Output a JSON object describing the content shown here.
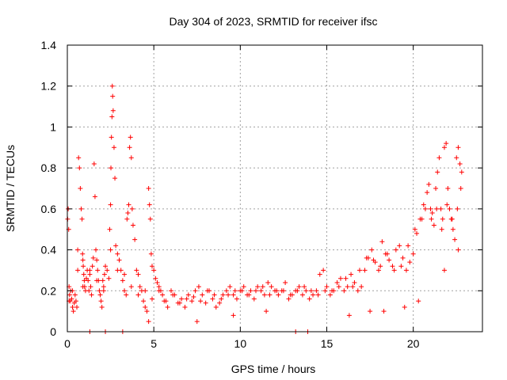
{
  "chart_data": {
    "type": "scatter",
    "title": "Day 304 of 2023, SRMTID for receiver ifsc",
    "xlabel": "GPS time / hours",
    "ylabel": "SRMTID / TECUs",
    "xlim": [
      0,
      24
    ],
    "ylim": [
      0,
      1.4
    ],
    "xticks": [
      0,
      5,
      10,
      15,
      20
    ],
    "xtick_labels": [
      "0",
      "5",
      "10",
      "15",
      "20"
    ],
    "yticks": [
      0,
      0.2,
      0.4,
      0.6,
      0.8,
      1.0,
      1.2,
      1.4
    ],
    "ytick_labels": [
      "0",
      "0.2",
      "0.4",
      "0.6",
      "0.8",
      "1",
      "1.2",
      "1.4"
    ],
    "grid": true,
    "marker": "plus",
    "color": "#ff0000",
    "series": [
      {
        "name": "SRMTID",
        "x": [
          0.02,
          0.05,
          0.08,
          0.1,
          0.13,
          0.17,
          0.2,
          0.25,
          0.3,
          0.35,
          0.4,
          0.45,
          0.5,
          0.55,
          0.6,
          0.65,
          0.7,
          0.75,
          0.8,
          0.85,
          0.88,
          0.9,
          0.92,
          0.95,
          0.98,
          1.0,
          1.05,
          1.1,
          1.15,
          1.2,
          1.25,
          1.3,
          1.35,
          1.4,
          1.45,
          1.5,
          1.55,
          1.6,
          1.65,
          1.7,
          1.75,
          1.8,
          1.85,
          1.9,
          1.95,
          2.0,
          2.05,
          2.1,
          2.15,
          2.2,
          2.3,
          2.4,
          2.45,
          2.5,
          2.52,
          2.55,
          2.58,
          2.6,
          2.62,
          2.65,
          2.7,
          2.75,
          2.8,
          2.9,
          3.0,
          3.1,
          3.2,
          3.3,
          3.4,
          3.45,
          3.5,
          3.55,
          3.6,
          3.65,
          3.7,
          3.75,
          3.8,
          3.9,
          4.0,
          4.1,
          4.2,
          4.3,
          4.4,
          4.5,
          4.6,
          4.7,
          4.75,
          4.8,
          4.85,
          4.9,
          5.0,
          5.1,
          5.2,
          5.3,
          5.4,
          5.5,
          5.6,
          5.8,
          6.0,
          6.2,
          6.4,
          6.6,
          6.8,
          7.0,
          7.2,
          7.4,
          7.6,
          7.8,
          8.0,
          8.2,
          8.4,
          8.6,
          8.8,
          9.0,
          9.2,
          9.4,
          9.6,
          9.8,
          10.0,
          10.2,
          10.4,
          10.6,
          10.8,
          11.0,
          11.2,
          11.4,
          11.6,
          11.8,
          12.0,
          12.2,
          12.4,
          12.6,
          12.8,
          13.0,
          13.2,
          13.4,
          13.6,
          13.8,
          14.0,
          14.2,
          14.4,
          14.6,
          14.8,
          15.0,
          15.2,
          15.4,
          15.6,
          15.8,
          16.0,
          16.2,
          16.4,
          16.6,
          16.8,
          17.0,
          17.2,
          17.4,
          17.6,
          17.8,
          18.0,
          18.2,
          18.4,
          18.6,
          18.8,
          19.0,
          19.2,
          19.4,
          19.6,
          19.8,
          20.0,
          20.2,
          20.4,
          20.6,
          20.8,
          20.9,
          21.0,
          21.1,
          21.2,
          21.3,
          21.4,
          21.5,
          21.6,
          21.7,
          21.8,
          21.9,
          22.0,
          22.1,
          22.2,
          22.3,
          22.4,
          22.5,
          22.6,
          22.7,
          22.8,
          0.1,
          0.3,
          0.6,
          0.9,
          1.3,
          1.7,
          2.1,
          2.5,
          2.9,
          3.3,
          3.7,
          4.1,
          4.5,
          4.9,
          5.3,
          5.7,
          6.1,
          6.5,
          6.9,
          7.3,
          7.7,
          8.1,
          8.5,
          8.9,
          9.3,
          9.7,
          10.1,
          10.5,
          10.9,
          11.3,
          11.7,
          12.1,
          12.5,
          12.9,
          13.3,
          13.7,
          14.1,
          14.5,
          14.9,
          15.3,
          15.7,
          16.1,
          16.5,
          16.9,
          17.3,
          17.7,
          18.1,
          18.5,
          18.9,
          19.3,
          19.7,
          20.1,
          20.5,
          20.7,
          21.05,
          21.35,
          21.65,
          21.95,
          22.25,
          22.55,
          22.75,
          1.3,
          2.2,
          3.2,
          13.2,
          13.9,
          4.7,
          7.5,
          9.6,
          11.5,
          16.3,
          17.5,
          18.3,
          19.5,
          20.3,
          21.8,
          22.6
        ],
        "y": [
          0.55,
          0.6,
          0.5,
          0.22,
          0.18,
          0.15,
          0.2,
          0.16,
          0.12,
          0.1,
          0.14,
          0.18,
          0.15,
          0.12,
          0.4,
          0.85,
          0.8,
          0.7,
          0.6,
          0.55,
          0.38,
          0.35,
          0.32,
          0.28,
          0.25,
          0.22,
          0.2,
          0.26,
          0.3,
          0.25,
          0.2,
          0.28,
          0.22,
          0.18,
          0.32,
          0.36,
          0.82,
          0.66,
          0.4,
          0.35,
          0.3,
          0.25,
          0.2,
          0.18,
          0.15,
          0.12,
          0.25,
          0.22,
          0.28,
          0.32,
          0.3,
          0.26,
          0.5,
          0.62,
          0.8,
          0.95,
          1.05,
          1.2,
          1.15,
          1.08,
          0.9,
          0.75,
          0.42,
          0.38,
          0.35,
          0.3,
          0.25,
          0.2,
          0.18,
          0.55,
          0.58,
          0.62,
          0.9,
          0.95,
          0.85,
          0.6,
          0.52,
          0.45,
          0.3,
          0.28,
          0.22,
          0.2,
          0.15,
          0.12,
          0.1,
          0.7,
          0.62,
          0.55,
          0.38,
          0.32,
          0.3,
          0.26,
          0.24,
          0.22,
          0.2,
          0.18,
          0.15,
          0.12,
          0.2,
          0.18,
          0.14,
          0.16,
          0.12,
          0.18,
          0.15,
          0.2,
          0.22,
          0.18,
          0.14,
          0.2,
          0.16,
          0.12,
          0.14,
          0.18,
          0.2,
          0.22,
          0.18,
          0.16,
          0.2,
          0.22,
          0.18,
          0.2,
          0.16,
          0.22,
          0.2,
          0.18,
          0.24,
          0.22,
          0.2,
          0.18,
          0.2,
          0.24,
          0.16,
          0.18,
          0.2,
          0.22,
          0.18,
          0.2,
          0.16,
          0.18,
          0.2,
          0.28,
          0.3,
          0.22,
          0.18,
          0.2,
          0.24,
          0.26,
          0.2,
          0.22,
          0.28,
          0.24,
          0.2,
          0.22,
          0.3,
          0.36,
          0.4,
          0.34,
          0.3,
          0.44,
          0.38,
          0.35,
          0.32,
          0.4,
          0.42,
          0.36,
          0.3,
          0.34,
          0.38,
          0.48,
          0.55,
          0.62,
          0.68,
          0.72,
          0.6,
          0.58,
          0.52,
          0.7,
          0.78,
          0.85,
          0.6,
          0.55,
          0.9,
          0.92,
          0.7,
          0.6,
          0.55,
          0.5,
          0.45,
          0.85,
          0.9,
          0.82,
          0.78,
          0.15,
          0.2,
          0.3,
          0.22,
          0.3,
          0.25,
          0.2,
          0.4,
          0.3,
          0.28,
          0.22,
          0.18,
          0.2,
          0.16,
          0.2,
          0.15,
          0.18,
          0.14,
          0.16,
          0.17,
          0.15,
          0.2,
          0.18,
          0.16,
          0.18,
          0.2,
          0.2,
          0.18,
          0.2,
          0.22,
          0.18,
          0.2,
          0.2,
          0.18,
          0.2,
          0.22,
          0.2,
          0.18,
          0.2,
          0.2,
          0.22,
          0.26,
          0.22,
          0.3,
          0.36,
          0.35,
          0.32,
          0.38,
          0.3,
          0.32,
          0.42,
          0.5,
          0.55,
          0.6,
          0.55,
          0.6,
          0.5,
          0.62,
          0.55,
          0.6,
          0.7,
          0.0,
          0.0,
          0.0,
          0.0,
          0.0,
          0.05,
          0.05,
          0.08,
          0.1,
          0.08,
          0.1,
          0.1,
          0.12,
          0.15,
          0.3,
          0.4
        ]
      }
    ]
  }
}
